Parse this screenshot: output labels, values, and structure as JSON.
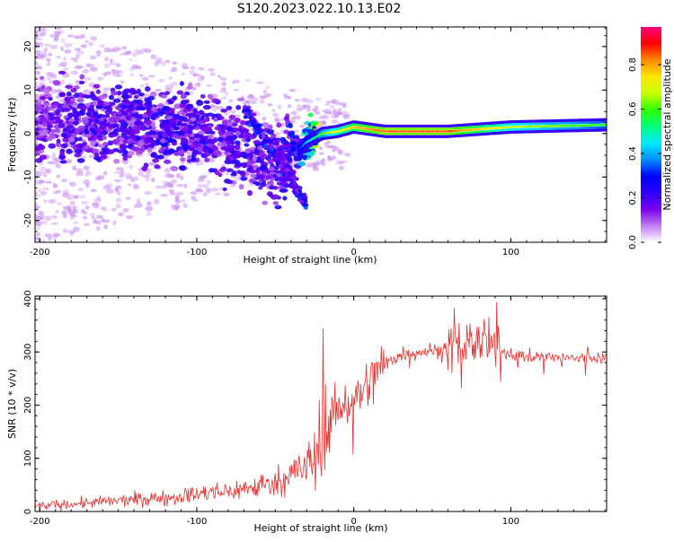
{
  "title": "S120.2023.022.10.13.E02",
  "colors": {
    "snr_line": "#e8302e",
    "colormap": [
      "#ffffff",
      "#c07cf0",
      "#7a00ee",
      "#2a00ff",
      "#0000ff",
      "#0090ff",
      "#00eaff",
      "#00ff7a",
      "#30ff00",
      "#c8ff00",
      "#ffe800",
      "#ff8800",
      "#ff0000",
      "#ff0080"
    ]
  },
  "chart_data": [
    {
      "type": "heatmap",
      "xlabel": "Height of straight line (km)",
      "ylabel": "Frequency (Hz)",
      "xlim": [
        -203,
        161
      ],
      "ylim": [
        -25,
        24.5
      ],
      "xticks": [
        -200,
        -100,
        0,
        100
      ],
      "yticks": [
        -20,
        -10,
        0,
        10,
        20
      ],
      "colorbar": {
        "label": "Normalized spectral amplitude",
        "range": [
          0,
          0.97
        ],
        "ticks": [
          0.0,
          0.2,
          0.4,
          0.6,
          0.8
        ]
      },
      "ridge": {
        "description_points_x_km": [
          -200,
          -180,
          -160,
          -140,
          -120,
          -100,
          -80,
          -60,
          -50,
          -40,
          -35,
          -30,
          -20,
          -10,
          0,
          20,
          60,
          100,
          161
        ],
        "frequency_hz": [
          3,
          3,
          2.5,
          2,
          1.5,
          1,
          -2,
          -5,
          -8,
          -3,
          -4,
          -2,
          0,
          0.5,
          1.5,
          0.5,
          0.5,
          1.5,
          2
        ],
        "amplitude": [
          0.15,
          0.2,
          0.2,
          0.2,
          0.22,
          0.2,
          0.2,
          0.2,
          0.2,
          0.3,
          0.3,
          0.45,
          0.65,
          0.75,
          0.82,
          0.9,
          0.9,
          0.72,
          0.6
        ]
      }
    },
    {
      "type": "line",
      "xlabel": "Height of straight line (km)",
      "ylabel": "SNR (10 * v/v)",
      "xlim": [
        -203,
        161
      ],
      "ylim": [
        0,
        405
      ],
      "xticks": [
        -200,
        -100,
        0,
        100
      ],
      "yticks": [
        0,
        100,
        200,
        300,
        400
      ],
      "series": [
        {
          "x": [
            -203,
            -180,
            -160,
            -140,
            -120,
            -100,
            -80,
            -60,
            -50,
            -40,
            -30,
            -25,
            -20,
            -10,
            0,
            10,
            20,
            30,
            40,
            60,
            70,
            80,
            90,
            100,
            120,
            140,
            161
          ],
          "y": [
            10,
            14,
            18,
            22,
            26,
            32,
            38,
            48,
            55,
            70,
            85,
            100,
            160,
            195,
            210,
            240,
            280,
            295,
            300,
            305,
            315,
            320,
            305,
            295,
            290,
            288,
            290
          ]
        }
      ]
    }
  ]
}
